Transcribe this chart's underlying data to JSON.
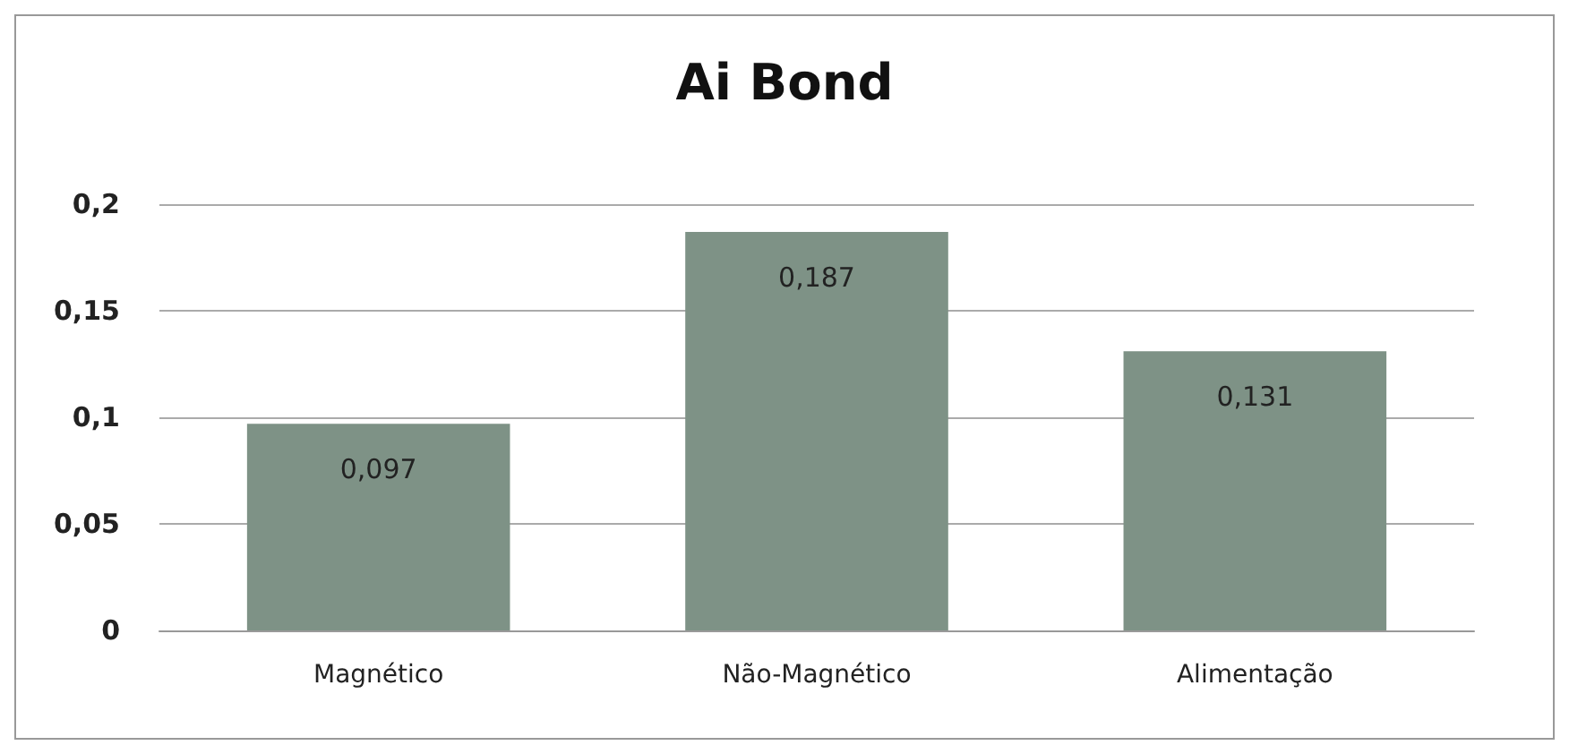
{
  "chart_data": {
    "type": "bar",
    "title": "Ai Bond",
    "categories": [
      "Magnético",
      "Não-Magnético",
      "Alimentação"
    ],
    "values": [
      0.097,
      0.187,
      0.131
    ],
    "value_labels": [
      "0,097",
      "0,187",
      "0,131"
    ],
    "color": "#7e9286",
    "ylim": [
      0,
      0.2
    ],
    "yticks": [
      {
        "value": 0,
        "label": "0"
      },
      {
        "value": 0.05,
        "label": "0,05"
      },
      {
        "value": 0.1,
        "label": "0,1"
      },
      {
        "value": 0.15,
        "label": "0,15"
      },
      {
        "value": 0.2,
        "label": "0,2"
      }
    ],
    "grid": "y"
  }
}
